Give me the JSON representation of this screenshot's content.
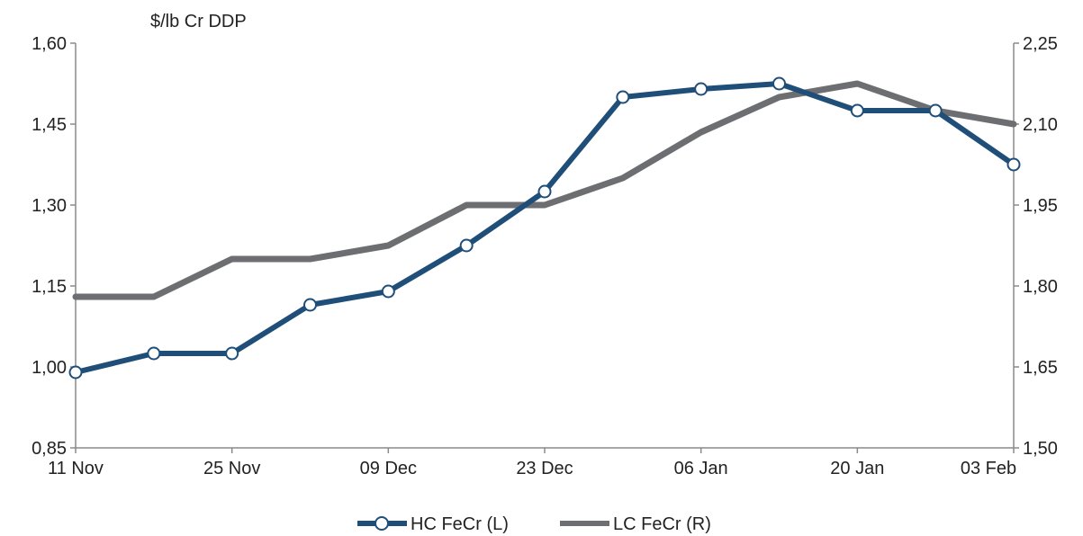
{
  "chart_data": {
    "type": "line",
    "ylabel": "$/lb Cr DDP",
    "x_tick_labels": [
      "11 Nov",
      "25 Nov",
      "09 Dec",
      "23 Dec",
      "06 Jan",
      "20 Jan",
      "03 Feb"
    ],
    "y_left": {
      "min": 0.85,
      "max": 1.6,
      "ticks": [
        "0,85",
        "1,00",
        "1,15",
        "1,30",
        "1,45",
        "1,60"
      ],
      "tick_values": [
        0.85,
        1.0,
        1.15,
        1.3,
        1.45,
        1.6
      ]
    },
    "y_right": {
      "min": 1.5,
      "max": 2.25,
      "ticks": [
        "1,50",
        "1,65",
        "1,80",
        "1,95",
        "2,10",
        "2,25"
      ],
      "tick_values": [
        1.5,
        1.65,
        1.8,
        1.95,
        2.1,
        2.25
      ]
    },
    "x_dates": [
      "2014-11-11",
      "2014-11-18",
      "2014-11-25",
      "2014-12-02",
      "2014-12-09",
      "2014-12-16",
      "2014-12-23",
      "2014-12-30",
      "2015-01-06",
      "2015-01-13",
      "2015-01-20",
      "2015-01-27",
      "2015-02-03"
    ],
    "series": [
      {
        "name": "HC FeCr (L)",
        "axis": "left",
        "color": "#1f4e79",
        "markers": true,
        "values": [
          0.99,
          1.025,
          1.025,
          1.115,
          1.14,
          1.225,
          1.325,
          1.5,
          1.515,
          1.525,
          1.475,
          1.475,
          1.375
        ]
      },
      {
        "name": "LC FeCr (R)",
        "axis": "right",
        "color": "#6d6e71",
        "markers": false,
        "values": [
          1.78,
          1.78,
          1.85,
          1.85,
          1.875,
          1.95,
          1.95,
          2.0,
          2.085,
          2.15,
          2.175,
          2.125,
          2.1
        ]
      }
    ],
    "legend_position": "bottom-center",
    "grid": false
  }
}
